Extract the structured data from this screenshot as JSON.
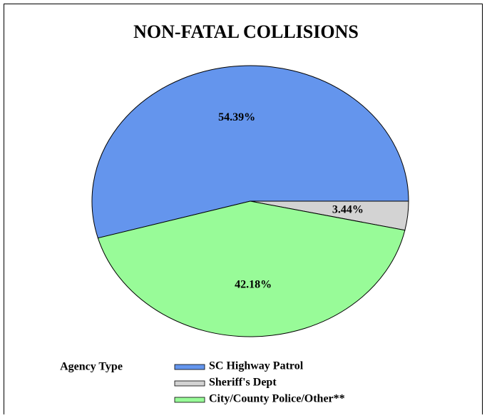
{
  "chart_data": {
    "type": "pie",
    "title": "NON-FATAL COLLISIONS",
    "legend_title": "Agency Type",
    "categories": [
      "SC Highway Patrol",
      "Sheriff's Dept",
      "City/County Police/Other**"
    ],
    "values": [
      54.39,
      3.44,
      42.18
    ],
    "value_labels": [
      "54.39%",
      "3.44%",
      "42.18%"
    ],
    "colors": [
      "#6495ed",
      "#d3d3d3",
      "#98fb98"
    ]
  }
}
